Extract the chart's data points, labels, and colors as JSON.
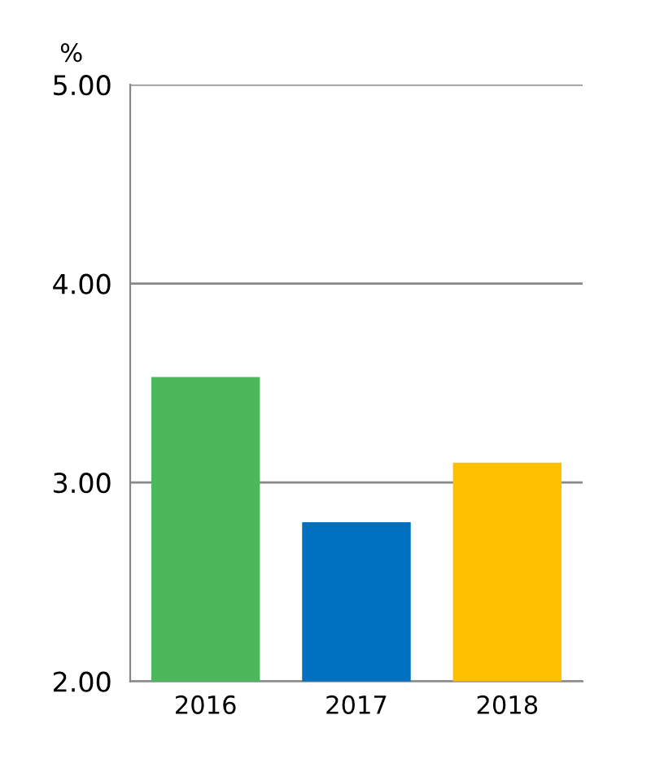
{
  "chart_data": {
    "type": "bar",
    "ylabel": "%",
    "categories": [
      "2016",
      "2017",
      "2018"
    ],
    "values": [
      3.53,
      2.8,
      3.1
    ],
    "colors": [
      "#4cb85c",
      "#0070c0",
      "#ffc000"
    ],
    "ylim": [
      2,
      5
    ],
    "yticks": [
      {
        "value": 2,
        "label": "2.00"
      },
      {
        "value": 3,
        "label": "3.00"
      },
      {
        "value": 4,
        "label": "4.00"
      },
      {
        "value": 5,
        "label": "5.00"
      }
    ],
    "grid": "y"
  }
}
